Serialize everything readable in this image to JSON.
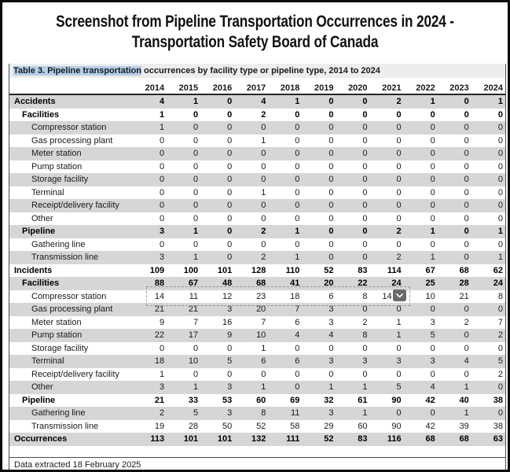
{
  "title": {
    "line1": "Screenshot from Pipeline Transportation Occurrences in 2024 -",
    "line2": "Transportation Safety Board of Canada"
  },
  "table": {
    "caption_highlight": "Table 3. Pipeline transportation",
    "caption_rest": " occurrences by facility type or pipeline type, 2014 to 2024",
    "years": [
      "2014",
      "2015",
      "2016",
      "2017",
      "2018",
      "2019",
      "2020",
      "2021",
      "2022",
      "2023",
      "2024"
    ],
    "rows": [
      {
        "label": "Accidents",
        "level": 0,
        "values": [
          4,
          1,
          0,
          4,
          1,
          0,
          0,
          2,
          1,
          0,
          1
        ]
      },
      {
        "label": "Facilities",
        "level": 1,
        "values": [
          1,
          0,
          0,
          2,
          0,
          0,
          0,
          0,
          0,
          0,
          0
        ]
      },
      {
        "label": "Compressor station",
        "level": 2,
        "values": [
          1,
          0,
          0,
          0,
          0,
          0,
          0,
          0,
          0,
          0,
          0
        ]
      },
      {
        "label": "Gas processing plant",
        "level": 2,
        "values": [
          0,
          0,
          0,
          1,
          0,
          0,
          0,
          0,
          0,
          0,
          0
        ]
      },
      {
        "label": "Meter station",
        "level": 2,
        "values": [
          0,
          0,
          0,
          0,
          0,
          0,
          0,
          0,
          0,
          0,
          0
        ]
      },
      {
        "label": "Pump station",
        "level": 2,
        "values": [
          0,
          0,
          0,
          0,
          0,
          0,
          0,
          0,
          0,
          0,
          0
        ]
      },
      {
        "label": "Storage facility",
        "level": 2,
        "values": [
          0,
          0,
          0,
          0,
          0,
          0,
          0,
          0,
          0,
          0,
          0
        ]
      },
      {
        "label": "Terminal",
        "level": 2,
        "values": [
          0,
          0,
          0,
          1,
          0,
          0,
          0,
          0,
          0,
          0,
          0
        ]
      },
      {
        "label": "Receipt/delivery facility",
        "level": 2,
        "values": [
          0,
          0,
          0,
          0,
          0,
          0,
          0,
          0,
          0,
          0,
          0
        ]
      },
      {
        "label": "Other",
        "level": 2,
        "values": [
          0,
          0,
          0,
          0,
          0,
          0,
          0,
          0,
          0,
          0,
          0
        ]
      },
      {
        "label": "Pipeline",
        "level": 1,
        "values": [
          3,
          1,
          0,
          2,
          1,
          0,
          0,
          2,
          1,
          0,
          1
        ]
      },
      {
        "label": "Gathering line",
        "level": 2,
        "values": [
          0,
          0,
          0,
          0,
          0,
          0,
          0,
          0,
          0,
          0,
          0
        ]
      },
      {
        "label": "Transmission line",
        "level": 2,
        "values": [
          3,
          1,
          0,
          2,
          1,
          0,
          0,
          2,
          1,
          0,
          1
        ]
      },
      {
        "label": "Incidents",
        "level": 0,
        "values": [
          109,
          100,
          101,
          128,
          110,
          52,
          83,
          114,
          67,
          68,
          62
        ]
      },
      {
        "label": "Facilities",
        "level": 1,
        "values": [
          88,
          67,
          48,
          68,
          41,
          20,
          22,
          24,
          25,
          28,
          24
        ]
      },
      {
        "label": "Compressor station",
        "level": 2,
        "values": [
          14,
          11,
          12,
          23,
          18,
          6,
          8,
          14,
          10,
          21,
          8
        ],
        "selected": true,
        "dropdown_after_year": "2021"
      },
      {
        "label": "Gas processing plant",
        "level": 2,
        "values": [
          21,
          21,
          3,
          20,
          7,
          3,
          0,
          0,
          0,
          0,
          0
        ]
      },
      {
        "label": "Meter station",
        "level": 2,
        "values": [
          9,
          7,
          16,
          7,
          6,
          3,
          2,
          1,
          3,
          2,
          7
        ]
      },
      {
        "label": "Pump station",
        "level": 2,
        "values": [
          22,
          17,
          9,
          10,
          4,
          4,
          8,
          1,
          5,
          0,
          2
        ]
      },
      {
        "label": "Storage facility",
        "level": 2,
        "values": [
          0,
          0,
          0,
          1,
          0,
          0,
          0,
          0,
          0,
          0,
          0
        ]
      },
      {
        "label": "Terminal",
        "level": 2,
        "values": [
          18,
          10,
          5,
          6,
          6,
          3,
          3,
          3,
          3,
          4,
          5
        ]
      },
      {
        "label": "Receipt/delivery facility",
        "level": 2,
        "values": [
          1,
          0,
          0,
          0,
          0,
          0,
          0,
          0,
          0,
          0,
          2
        ]
      },
      {
        "label": "Other",
        "level": 2,
        "values": [
          3,
          1,
          3,
          1,
          0,
          1,
          1,
          5,
          4,
          1,
          0
        ]
      },
      {
        "label": "Pipeline",
        "level": 1,
        "values": [
          21,
          33,
          53,
          60,
          69,
          32,
          61,
          90,
          42,
          40,
          38
        ]
      },
      {
        "label": "Gathering line",
        "level": 2,
        "values": [
          2,
          5,
          3,
          8,
          11,
          3,
          1,
          0,
          0,
          1,
          0
        ]
      },
      {
        "label": "Transmission line",
        "level": 2,
        "values": [
          19,
          28,
          50,
          52,
          58,
          29,
          60,
          90,
          42,
          39,
          38
        ]
      },
      {
        "label": "Occurrences",
        "level": 0,
        "values": [
          113,
          101,
          101,
          132,
          111,
          52,
          83,
          116,
          68,
          68,
          63
        ]
      }
    ]
  },
  "icons": {
    "dropdown": "chevron-down-icon"
  },
  "footer": {
    "text": "Data extracted 18 February 2025"
  },
  "colors": {
    "highlight_blue": "#b3cfea",
    "stripe_gray": "#d6d6d6",
    "caption_bg": "#ededed",
    "dropdown_gray": "#6a6a6a"
  }
}
